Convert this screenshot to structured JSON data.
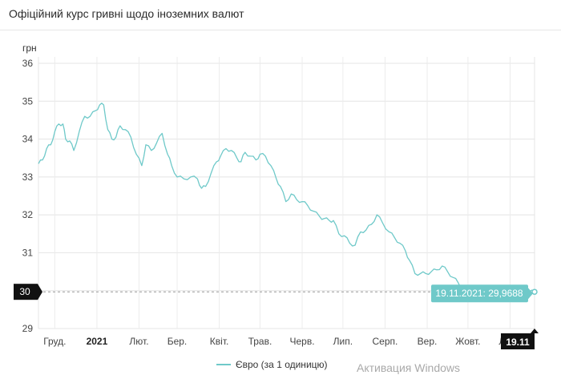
{
  "page": {
    "title": "Офіційний курс гривні щодо іноземних валют",
    "watermark": "Активация Windows"
  },
  "chart_data": {
    "type": "line",
    "ylabel": "грн",
    "ylim": [
      29,
      36
    ],
    "yticks": [
      29,
      30,
      31,
      32,
      33,
      34,
      35,
      36
    ],
    "grid": true,
    "x_start": "2020-11-19",
    "x_end": "2021-11-19",
    "xticks": [
      {
        "date": "2020-12-01",
        "label": "Груд.",
        "bold": false
      },
      {
        "date": "2021-01-01",
        "label": "2021",
        "bold": true
      },
      {
        "date": "2021-02-01",
        "label": "Лют.",
        "bold": false
      },
      {
        "date": "2021-03-01",
        "label": "Бер.",
        "bold": false
      },
      {
        "date": "2021-04-01",
        "label": "Квіт.",
        "bold": false
      },
      {
        "date": "2021-05-01",
        "label": "Трав.",
        "bold": false
      },
      {
        "date": "2021-06-01",
        "label": "Черв.",
        "bold": false
      },
      {
        "date": "2021-07-01",
        "label": "Лип.",
        "bold": false
      },
      {
        "date": "2021-08-01",
        "label": "Серп.",
        "bold": false
      },
      {
        "date": "2021-09-01",
        "label": "Вер.",
        "bold": false
      },
      {
        "date": "2021-10-01",
        "label": "Жовт.",
        "bold": false
      },
      {
        "date": "2021-11-01",
        "label": "Лист.",
        "bold": false
      }
    ],
    "series": [
      {
        "name": "Євро (за 1 одиницю)",
        "color": "#6fc9c9",
        "x": [
          "2020-11-19",
          "2020-11-22",
          "2020-11-25",
          "2020-11-28",
          "2020-12-01",
          "2020-12-04",
          "2020-12-07",
          "2020-12-09",
          "2020-12-12",
          "2020-12-15",
          "2020-12-19",
          "2020-12-23",
          "2020-12-27",
          "2020-12-31",
          "2021-01-03",
          "2021-01-06",
          "2021-01-09",
          "2021-01-12",
          "2021-01-15",
          "2021-01-18",
          "2021-01-22",
          "2021-01-26",
          "2021-01-30",
          "2021-02-03",
          "2021-02-06",
          "2021-02-10",
          "2021-02-14",
          "2021-02-18",
          "2021-02-22",
          "2021-02-25",
          "2021-03-01",
          "2021-03-06",
          "2021-03-11",
          "2021-03-16",
          "2021-03-19",
          "2021-03-22",
          "2021-03-26",
          "2021-03-30",
          "2021-04-02",
          "2021-04-06",
          "2021-04-10",
          "2021-04-14",
          "2021-04-17",
          "2021-04-20",
          "2021-04-24",
          "2021-04-28",
          "2021-05-01",
          "2021-05-05",
          "2021-05-09",
          "2021-05-13",
          "2021-05-16",
          "2021-05-20",
          "2021-05-24",
          "2021-05-28",
          "2021-06-01",
          "2021-06-05",
          "2021-06-09",
          "2021-06-14",
          "2021-06-17",
          "2021-06-21",
          "2021-06-24",
          "2021-06-28",
          "2021-07-02",
          "2021-07-06",
          "2021-07-10",
          "2021-07-14",
          "2021-07-18",
          "2021-07-22",
          "2021-07-26",
          "2021-07-30",
          "2021-08-04",
          "2021-08-08",
          "2021-08-12",
          "2021-08-16",
          "2021-08-19",
          "2021-08-23",
          "2021-08-27",
          "2021-08-31",
          "2021-09-04",
          "2021-09-08",
          "2021-09-12",
          "2021-09-16",
          "2021-09-20",
          "2021-09-24",
          "2021-09-28",
          "2021-10-02",
          "2021-10-06",
          "2021-10-10",
          "2021-10-14",
          "2021-10-18",
          "2021-10-22",
          "2021-10-26",
          "2021-10-30",
          "2021-11-03",
          "2021-11-07",
          "2021-11-11",
          "2021-11-15",
          "2021-11-19"
        ],
        "values": [
          33.35,
          33.45,
          33.75,
          33.85,
          34.2,
          34.4,
          34.4,
          34.0,
          33.95,
          33.7,
          34.2,
          34.6,
          34.6,
          34.75,
          34.9,
          34.9,
          34.25,
          34.0,
          34.05,
          34.35,
          34.25,
          34.05,
          33.6,
          33.3,
          33.85,
          33.7,
          33.9,
          34.15,
          33.6,
          33.3,
          33.0,
          32.95,
          33.0,
          32.95,
          32.7,
          32.75,
          33.1,
          33.4,
          33.55,
          33.75,
          33.7,
          33.5,
          33.4,
          33.65,
          33.55,
          33.45,
          33.6,
          33.55,
          33.3,
          32.95,
          32.75,
          32.35,
          32.55,
          32.4,
          32.35,
          32.25,
          32.1,
          31.95,
          31.9,
          31.85,
          31.85,
          31.5,
          31.45,
          31.25,
          31.2,
          31.55,
          31.6,
          31.75,
          32.0,
          31.8,
          31.55,
          31.4,
          31.25,
          31.05,
          30.8,
          30.45,
          30.45,
          30.45,
          30.5,
          30.55,
          30.65,
          30.5,
          30.35,
          30.2,
          29.97,
          30.0,
          30.0,
          30.0,
          29.98,
          29.97,
          29.97,
          29.96,
          29.97,
          29.97,
          29.97,
          29.97,
          29.97,
          29.9688
        ]
      }
    ],
    "crosshair": {
      "value_label": "30",
      "date_label": "19.11",
      "tooltip": "19.11.2021: 29,9688"
    },
    "legend": {
      "placement": "bottom-center"
    }
  }
}
